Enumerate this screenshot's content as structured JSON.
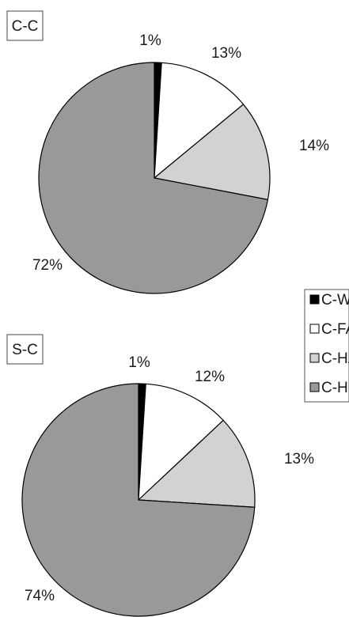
{
  "legend": {
    "entries": [
      {
        "name": "C-WS",
        "color": "#000000"
      },
      {
        "name": "C-FA",
        "color": "#ffffff"
      },
      {
        "name": "C-HA",
        "color": "#d2d2d2"
      },
      {
        "name": "C-H",
        "color": "#999999"
      }
    ]
  },
  "chart_data": [
    {
      "type": "pie",
      "title": "C-C",
      "categories": [
        "C-WS",
        "C-FA",
        "C-HA",
        "C-H"
      ],
      "values": [
        1,
        13,
        14,
        72
      ],
      "labels": [
        "1%",
        "13%",
        "14%",
        "72%"
      ],
      "unit": "%",
      "legend_position": "right"
    },
    {
      "type": "pie",
      "title": "S-C",
      "categories": [
        "C-WS",
        "C-FA",
        "C-HA",
        "C-H"
      ],
      "values": [
        1,
        12,
        13,
        74
      ],
      "labels": [
        "1%",
        "12%",
        "13%",
        "74%"
      ],
      "unit": "%",
      "legend_position": "right"
    }
  ]
}
